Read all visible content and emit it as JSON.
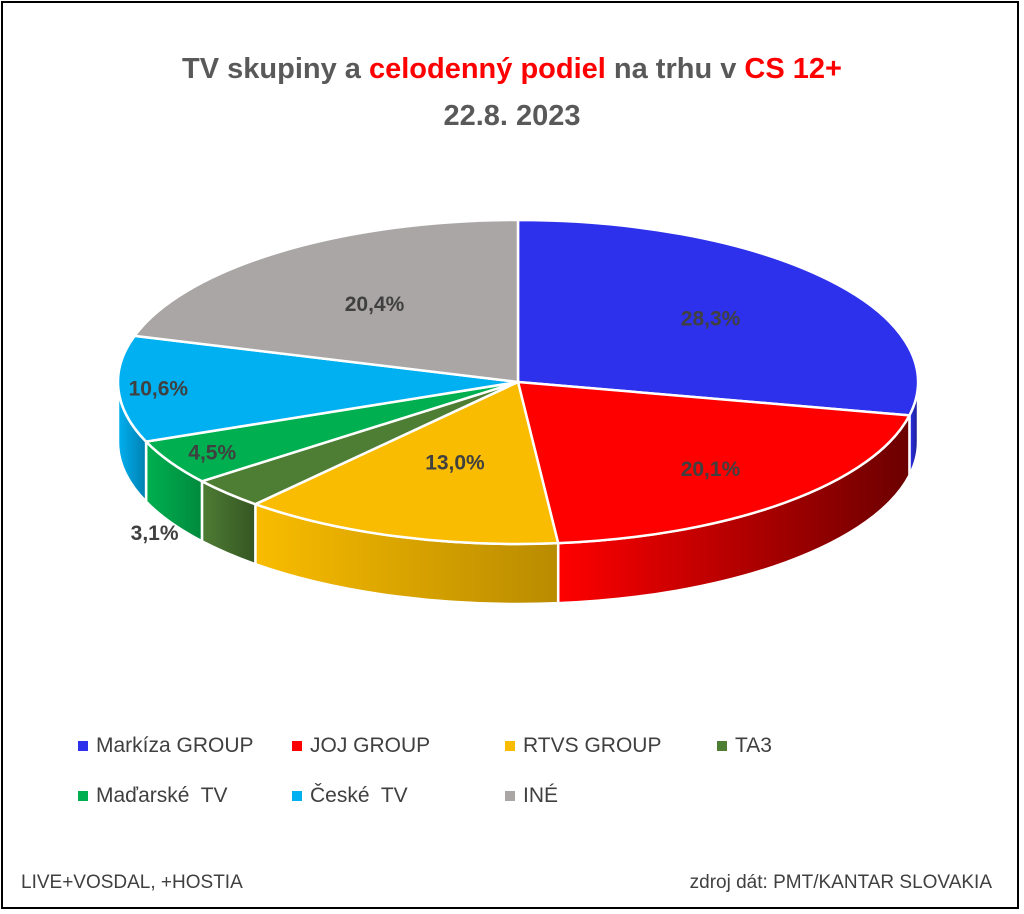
{
  "title": {
    "part1": "TV skupiny a ",
    "part2": "celodenný podiel",
    "part3": " na trhu v ",
    "part4": "CS 12+",
    "line2": "22.8. 2023"
  },
  "chart_data": {
    "type": "pie",
    "categories": [
      "Markíza GROUP",
      "JOJ GROUP",
      "RTVS GROUP",
      "TA3",
      "Maďarské  TV",
      "České  TV",
      "INÉ"
    ],
    "values": [
      28.3,
      20.1,
      13.0,
      3.1,
      4.5,
      10.6,
      20.4
    ],
    "value_labels": [
      "28,3%",
      "20,1%",
      "13,0%",
      "3,1%",
      "4,5%",
      "10,6%",
      "20,4%"
    ],
    "colors": [
      "#2e31eb",
      "#ff0000",
      "#f9bc00",
      "#4e7d34",
      "#00b050",
      "#00b0f0",
      "#aaa6a6"
    ],
    "side_colors": [
      "#1a1c8c",
      "#6b0000",
      "#b98b00",
      "#355522",
      "#008a3d",
      "#0080b0",
      "#7c7878"
    ],
    "legend_position": "bottom",
    "style": "3d"
  },
  "footer": {
    "left": "LIVE+VOSDAL, +HOSTIA",
    "right": "zdroj dát: PMT/KANTAR SLOVAKIA"
  }
}
